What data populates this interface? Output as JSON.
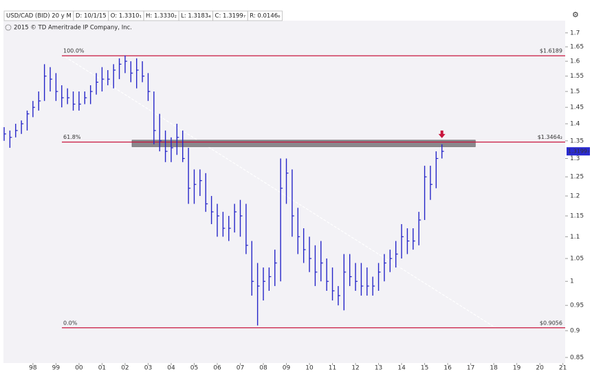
{
  "chart_data": {
    "type": "ohlc",
    "header": [
      "USD/CAD (BID) 20 y M",
      "D: 10/1/15",
      "O: 1.3310₁",
      "H: 1.3330₂",
      "L: 1.3183₄",
      "C: 1.3199₇",
      "R: 0.0146₆"
    ],
    "copyright": "2015 © TD Ameritrade IP Company, Inc.",
    "log_scale": true,
    "color": "#2424c8",
    "xlim": [
      1996.72,
      2021.1
    ],
    "xticks": [
      {
        "value": 1998,
        "label": "98"
      },
      {
        "value": 1999,
        "label": "99"
      },
      {
        "value": 2000,
        "label": "00"
      },
      {
        "value": 2001,
        "label": "01"
      },
      {
        "value": 2002,
        "label": "02"
      },
      {
        "value": 2003,
        "label": "03"
      },
      {
        "value": 2004,
        "label": "04"
      },
      {
        "value": 2005,
        "label": "05"
      },
      {
        "value": 2006,
        "label": "06"
      },
      {
        "value": 2007,
        "label": "07"
      },
      {
        "value": 2008,
        "label": "08"
      },
      {
        "value": 2009,
        "label": "09"
      },
      {
        "value": 2010,
        "label": "10"
      },
      {
        "value": 2011,
        "label": "11"
      },
      {
        "value": 2012,
        "label": "12"
      },
      {
        "value": 2013,
        "label": "13"
      },
      {
        "value": 2014,
        "label": "14"
      },
      {
        "value": 2015,
        "label": "15"
      },
      {
        "value": 2016,
        "label": "16"
      },
      {
        "value": 2017,
        "label": "17"
      },
      {
        "value": 2018,
        "label": "18"
      },
      {
        "value": 2019,
        "label": "19"
      },
      {
        "value": 2020,
        "label": "20"
      },
      {
        "value": 2021,
        "label": "21"
      }
    ],
    "ylim": [
      0.84,
      1.745
    ],
    "yticks": [
      0.85,
      0.9,
      0.95,
      1,
      1.05,
      1.1,
      1.15,
      1.2,
      1.25,
      1.3,
      1.35,
      1.4,
      1.45,
      1.5,
      1.55,
      1.6,
      1.65,
      1.7
    ],
    "x": [
      1996.75,
      1997.0,
      1997.25,
      1997.5,
      1997.75,
      1998.0,
      1998.25,
      1998.5,
      1998.75,
      1999.0,
      1999.25,
      1999.5,
      1999.75,
      2000.0,
      2000.25,
      2000.5,
      2000.75,
      2001.0,
      2001.25,
      2001.5,
      2001.75,
      2002.0,
      2002.25,
      2002.5,
      2002.75,
      2003.0,
      2003.25,
      2003.5,
      2003.75,
      2004.0,
      2004.25,
      2004.5,
      2004.75,
      2005.0,
      2005.25,
      2005.5,
      2005.75,
      2006.0,
      2006.25,
      2006.5,
      2006.75,
      2007.0,
      2007.25,
      2007.5,
      2007.75,
      2008.0,
      2008.25,
      2008.5,
      2008.75,
      2009.0,
      2009.25,
      2009.5,
      2009.75,
      2010.0,
      2010.25,
      2010.5,
      2010.75,
      2011.0,
      2011.25,
      2011.5,
      2011.75,
      2012.0,
      2012.25,
      2012.5,
      2012.75,
      2013.0,
      2013.25,
      2013.5,
      2013.75,
      2014.0,
      2014.25,
      2014.5,
      2014.75,
      2015.0,
      2015.25,
      2015.5,
      2015.75
    ],
    "high": [
      1.39,
      1.38,
      1.4,
      1.41,
      1.44,
      1.47,
      1.5,
      1.59,
      1.58,
      1.56,
      1.52,
      1.51,
      1.5,
      1.5,
      1.5,
      1.52,
      1.56,
      1.58,
      1.57,
      1.59,
      1.61,
      1.62,
      1.6,
      1.61,
      1.6,
      1.56,
      1.5,
      1.43,
      1.38,
      1.36,
      1.4,
      1.38,
      1.33,
      1.27,
      1.27,
      1.26,
      1.2,
      1.18,
      1.16,
      1.15,
      1.18,
      1.19,
      1.18,
      1.09,
      1.04,
      1.03,
      1.03,
      1.07,
      1.3,
      1.3,
      1.27,
      1.17,
      1.12,
      1.1,
      1.08,
      1.09,
      1.05,
      1.03,
      0.99,
      1.06,
      1.06,
      1.04,
      1.04,
      1.03,
      1.01,
      1.04,
      1.06,
      1.07,
      1.09,
      1.13,
      1.12,
      1.12,
      1.16,
      1.28,
      1.28,
      1.32,
      1.34
    ],
    "low": [
      1.35,
      1.33,
      1.36,
      1.37,
      1.38,
      1.42,
      1.44,
      1.47,
      1.5,
      1.47,
      1.45,
      1.46,
      1.44,
      1.44,
      1.46,
      1.46,
      1.49,
      1.5,
      1.52,
      1.51,
      1.54,
      1.56,
      1.53,
      1.51,
      1.53,
      1.47,
      1.34,
      1.32,
      1.29,
      1.29,
      1.31,
      1.29,
      1.18,
      1.18,
      1.2,
      1.16,
      1.13,
      1.1,
      1.1,
      1.09,
      1.11,
      1.1,
      1.06,
      0.97,
      0.91,
      0.96,
      0.98,
      0.99,
      1.0,
      1.18,
      1.1,
      1.06,
      1.04,
      1.02,
      0.99,
      1.0,
      0.98,
      0.96,
      0.95,
      0.94,
      0.99,
      0.98,
      0.97,
      0.97,
      0.97,
      0.98,
      1.0,
      1.02,
      1.03,
      1.05,
      1.06,
      1.07,
      1.08,
      1.14,
      1.19,
      1.22,
      1.3
    ],
    "close": [
      1.37,
      1.36,
      1.38,
      1.4,
      1.43,
      1.45,
      1.47,
      1.55,
      1.54,
      1.5,
      1.48,
      1.48,
      1.46,
      1.46,
      1.48,
      1.5,
      1.53,
      1.54,
      1.54,
      1.57,
      1.59,
      1.6,
      1.56,
      1.57,
      1.55,
      1.5,
      1.38,
      1.35,
      1.32,
      1.33,
      1.36,
      1.3,
      1.22,
      1.23,
      1.24,
      1.18,
      1.16,
      1.15,
      1.12,
      1.12,
      1.16,
      1.15,
      1.08,
      1.0,
      0.99,
      1.0,
      1.01,
      1.04,
      1.22,
      1.26,
      1.15,
      1.1,
      1.07,
      1.05,
      1.02,
      1.04,
      1.0,
      0.98,
      0.97,
      1.02,
      1.01,
      1.0,
      0.99,
      0.99,
      0.99,
      1.02,
      1.04,
      1.05,
      1.06,
      1.1,
      1.09,
      1.09,
      1.14,
      1.25,
      1.23,
      1.3,
      1.32
    ],
    "levels": [
      {
        "label": "100.0%",
        "value": 1.6189,
        "value_label": "$1.6189"
      },
      {
        "label": "61.8%",
        "value": 1.34642,
        "value_label": "$1.3464₂"
      },
      {
        "label": "0.0%",
        "value": 0.9056,
        "value_label": "$0.9056"
      }
    ],
    "level_color": "#c8143c",
    "zone": {
      "from": 2002.3,
      "to": 2017.2,
      "low": 1.333,
      "high": 1.352,
      "color": "#8a878c"
    },
    "trendline": {
      "x": [
        1999.4,
        2018.1
      ],
      "y": [
        1.615,
        0.905
      ]
    },
    "last_price": {
      "value": 1.31997,
      "label": "1.3199₇"
    }
  }
}
